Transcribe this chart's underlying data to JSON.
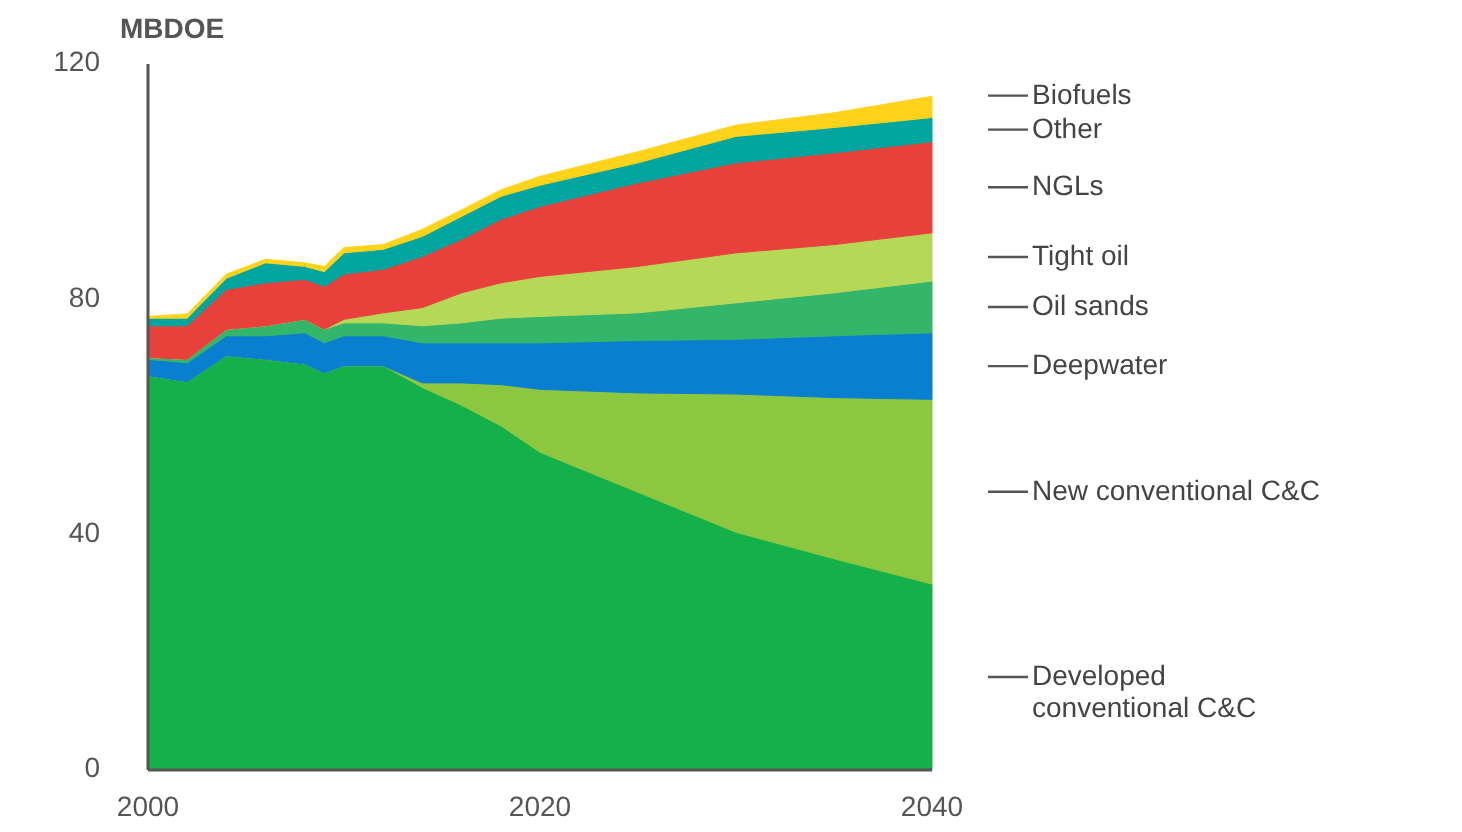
{
  "chart_data": {
    "type": "area",
    "stacked": true,
    "ylabel": "MBDOE",
    "x": [
      2000,
      2002,
      2004,
      2006,
      2008,
      2009,
      2010,
      2012,
      2014,
      2016,
      2018,
      2020,
      2025,
      2030,
      2035,
      2040
    ],
    "xlim": [
      2000,
      2040
    ],
    "xticks": [
      2000,
      2020,
      2040
    ],
    "ylim": [
      0,
      120
    ],
    "yticks": [
      0,
      40,
      80,
      120
    ],
    "grid": false,
    "legend": "right",
    "series": [
      {
        "name": "Developed conventional C&C",
        "color": "#14b04a",
        "values": [
          67,
          66,
          70.4,
          69.8,
          69,
          67.5,
          68.7,
          68.7,
          65,
          62,
          58.5,
          54,
          47.2,
          40.4,
          35.9,
          31.6
        ]
      },
      {
        "name": "New conventional C&C",
        "color": "#8dc63f",
        "values": [
          0,
          0,
          0,
          0,
          0,
          0,
          0,
          0,
          0.8,
          3.8,
          7,
          10.7,
          16.9,
          23.5,
          27.4,
          31.4
        ]
      },
      {
        "name": "Deepwater",
        "color": "#0a7fcf",
        "values": [
          2.8,
          3.2,
          3.4,
          4,
          5.3,
          5.1,
          5.1,
          5.1,
          6.8,
          6.8,
          7.1,
          7.9,
          8.9,
          9.3,
          10.5,
          11.3
        ]
      },
      {
        "name": "Oil sands",
        "color": "#33b56a",
        "values": [
          0.3,
          0.6,
          1.1,
          1.7,
          2.3,
          2.3,
          2.2,
          2.2,
          2.9,
          3.4,
          4.2,
          4.5,
          4.7,
          6.2,
          7.3,
          8.8
        ]
      },
      {
        "name": "Tight oil",
        "color": "#b6d857",
        "values": [
          0,
          0,
          0,
          0,
          0,
          0,
          0.6,
          1.7,
          3.1,
          5.1,
          6,
          6.8,
          7.9,
          8.5,
          8.2,
          8.2
        ]
      },
      {
        "name": "NGLs",
        "color": "#e8413b",
        "values": [
          5.4,
          5.7,
          6.8,
          7.3,
          6.8,
          7.3,
          7.7,
          7.4,
          8.7,
          9.1,
          10.8,
          11.9,
          14.2,
          15.3,
          15.6,
          15.5
        ]
      },
      {
        "name": "Other",
        "color": "#00a5a0",
        "values": [
          1.3,
          1.3,
          1.9,
          3.4,
          2.2,
          2.5,
          3.6,
          3.4,
          3.4,
          3.9,
          3.9,
          3.6,
          3.4,
          4.5,
          4.3,
          4.1
        ]
      },
      {
        "name": "Biofuels",
        "color": "#ffd31a",
        "values": [
          0.3,
          0.7,
          0.7,
          0.6,
          0.6,
          0.9,
          0.9,
          0.8,
          1.2,
          1.1,
          1.1,
          1.5,
          1.9,
          1.9,
          2.5,
          3.6
        ]
      }
    ]
  }
}
